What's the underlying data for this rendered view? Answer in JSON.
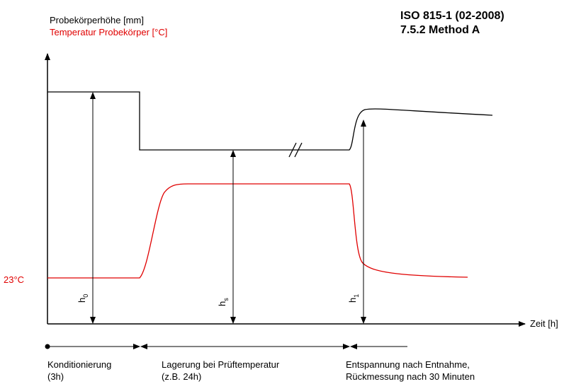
{
  "header": {
    "title": "ISO 815-1 (02-2008)",
    "subtitle": "7.5.2 Method A"
  },
  "axes": {
    "y_label": "Probekörperhöhe [mm]",
    "y2_label": "Temperatur Probekörper [°C]",
    "x_label": "Zeit [h]",
    "temperature_mark": "23°C"
  },
  "heights": [
    {
      "symbol": "h",
      "subscript": "0"
    },
    {
      "symbol": "h",
      "subscript": "s"
    },
    {
      "symbol": "h",
      "subscript": "1"
    }
  ],
  "phases": [
    {
      "line1": "Konditionierung",
      "line2": "(3h)"
    },
    {
      "line1": "Lagerung bei Prüftemperatur",
      "line2": "(z.B. 24h)"
    },
    {
      "line1": "Entspannung nach Entnahme,",
      "line2": "Rückmessung nach 30 Minuten"
    }
  ]
}
